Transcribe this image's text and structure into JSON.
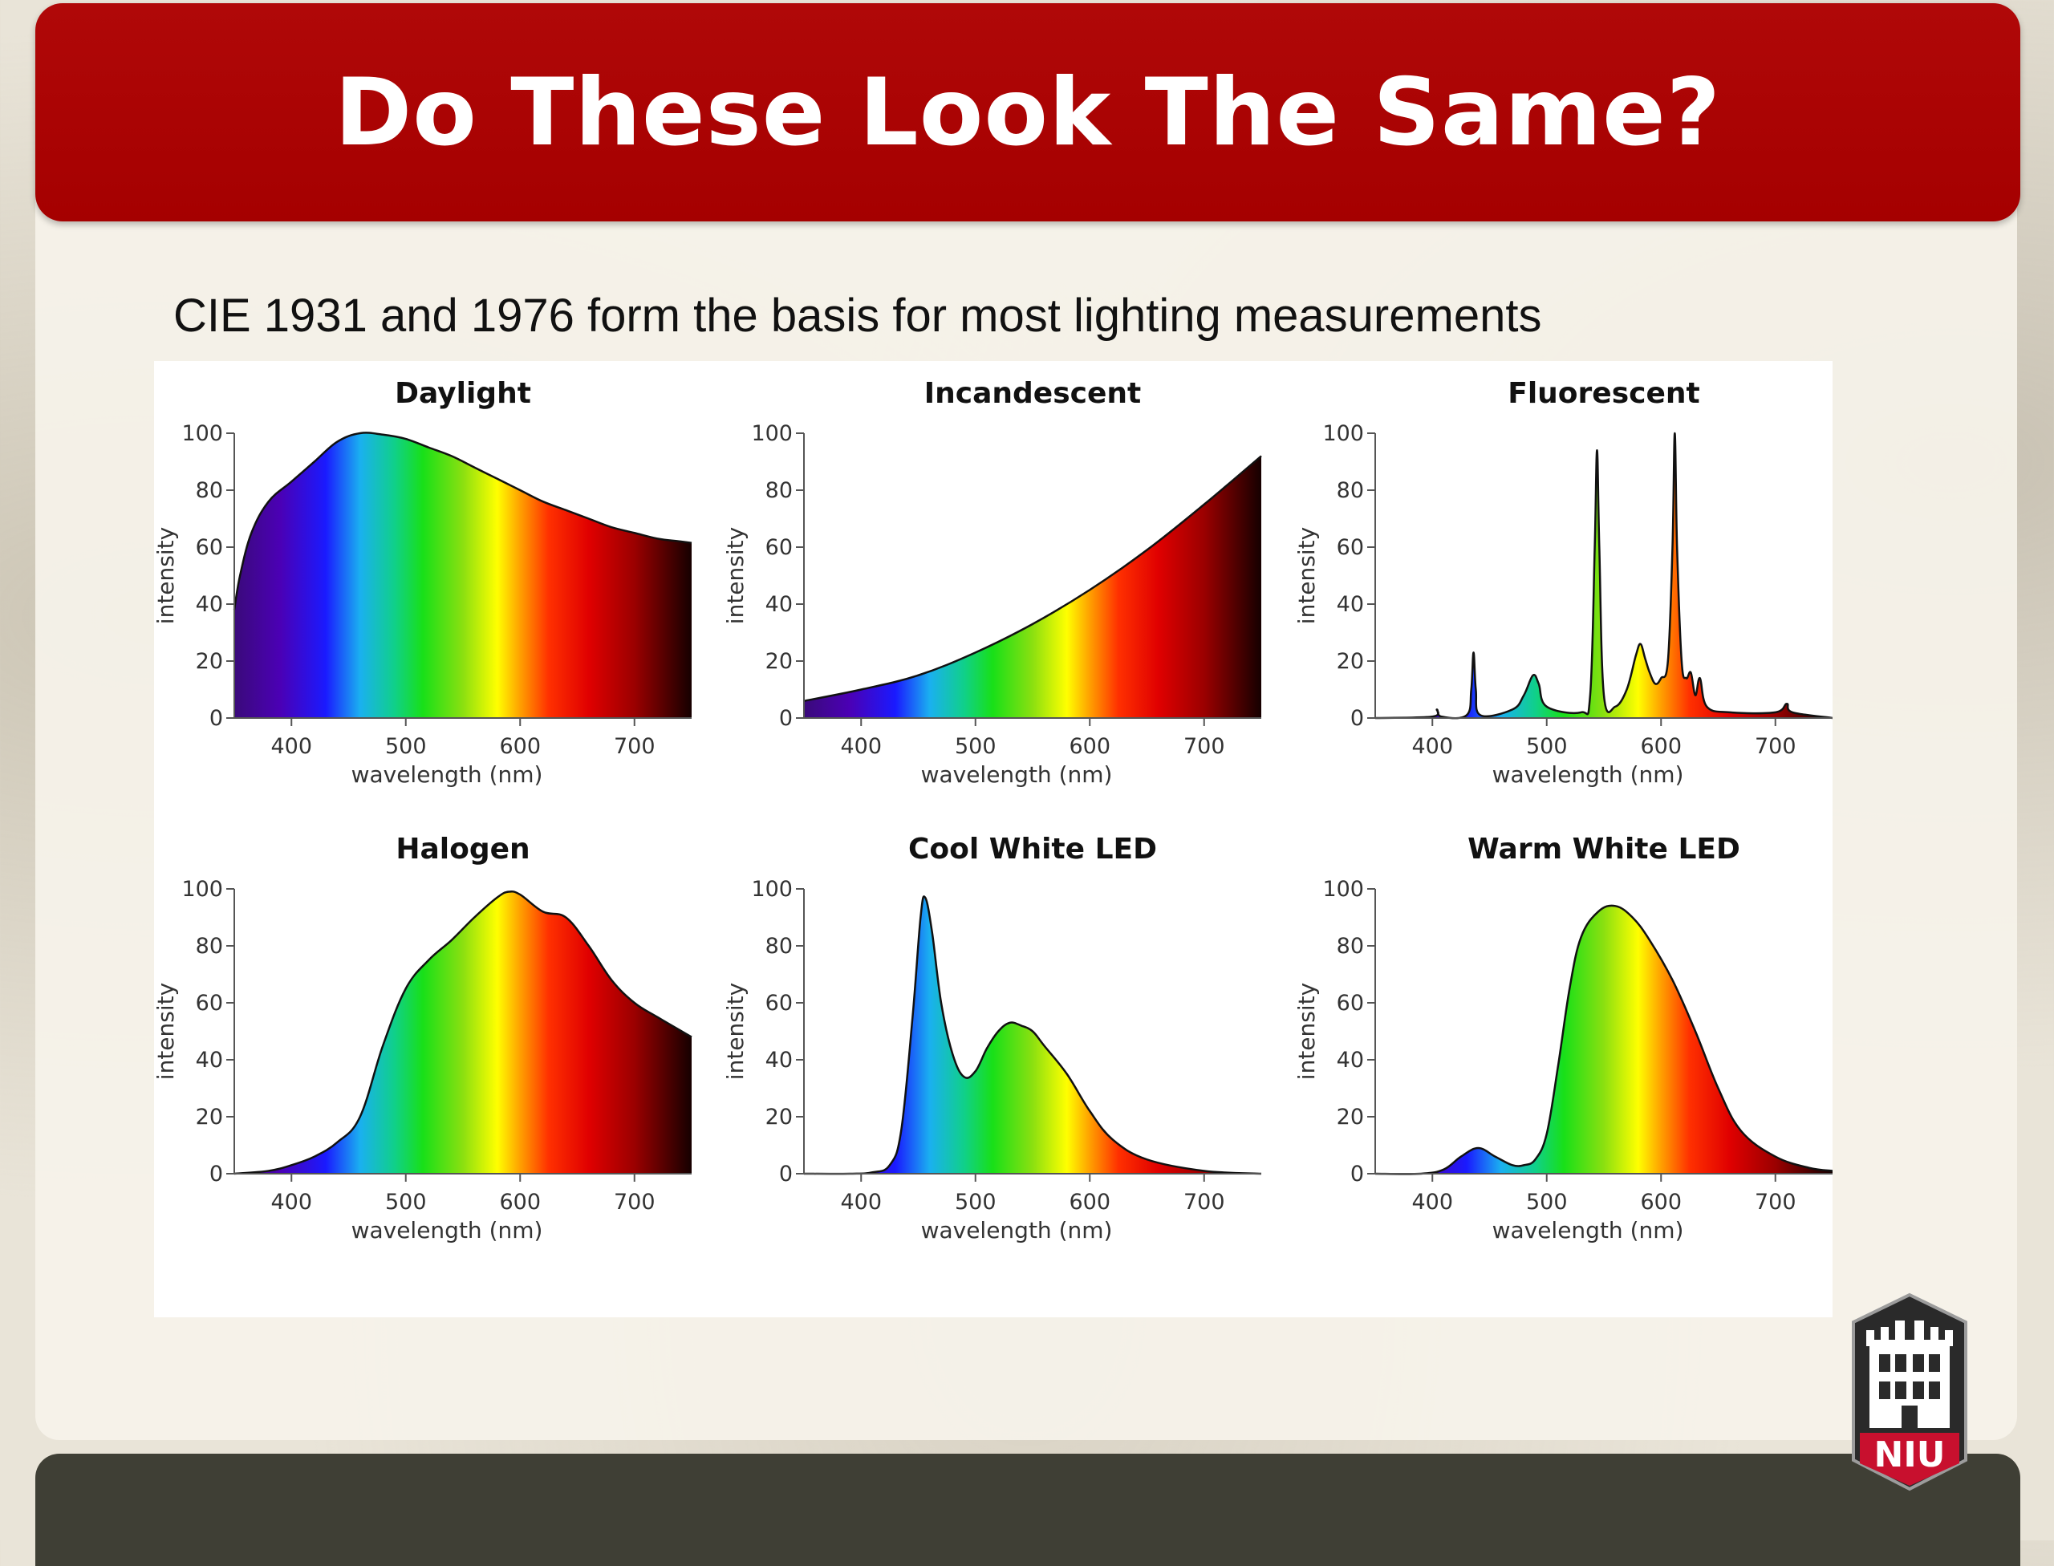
{
  "slide": {
    "title": "Do These Look The Same?",
    "subtitle": "CIE 1931 and 1976 form the basis for most lighting measurements",
    "logo_text": "NIU"
  },
  "colors": {
    "title_bar": "#a50000",
    "title_text": "#ffffff",
    "bottom_bar": "#3f3f35",
    "chart_background": "#ffffff"
  },
  "spectrum_colors": [
    {
      "wavelength": 350,
      "color": "#3a0a7a"
    },
    {
      "wavelength": 390,
      "color": "#4b00b5"
    },
    {
      "wavelength": 430,
      "color": "#1a1aff"
    },
    {
      "wavelength": 460,
      "color": "#1ab0f0"
    },
    {
      "wavelength": 490,
      "color": "#10d08a"
    },
    {
      "wavelength": 515,
      "color": "#18e018"
    },
    {
      "wavelength": 550,
      "color": "#8be010"
    },
    {
      "wavelength": 580,
      "color": "#ffff00"
    },
    {
      "wavelength": 600,
      "color": "#ffa000"
    },
    {
      "wavelength": 625,
      "color": "#ff3000"
    },
    {
      "wavelength": 660,
      "color": "#e00000"
    },
    {
      "wavelength": 700,
      "color": "#9b0000"
    },
    {
      "wavelength": 750,
      "color": "#150000"
    }
  ],
  "chart_data": [
    {
      "type": "area",
      "title": "Daylight",
      "xlabel": "wavelength (nm)",
      "ylabel": "intensity",
      "xlim": [
        350,
        750
      ],
      "ylim": [
        0,
        100
      ],
      "xticks": [
        400,
        500,
        600,
        700
      ],
      "yticks": [
        0,
        20,
        40,
        60,
        80,
        100
      ],
      "x": [
        350,
        355,
        365,
        380,
        400,
        420,
        440,
        460,
        480,
        500,
        520,
        540,
        560,
        580,
        600,
        620,
        640,
        660,
        680,
        700,
        720,
        740,
        750
      ],
      "y": [
        38,
        50,
        65,
        76,
        83,
        90,
        97,
        100,
        99.5,
        98,
        95,
        92,
        88,
        84,
        80,
        76,
        73,
        70,
        67,
        65,
        63,
        62,
        61.5
      ]
    },
    {
      "type": "area",
      "title": "Incandescent",
      "xlabel": "wavelength (nm)",
      "ylabel": "intensity",
      "xlim": [
        350,
        750
      ],
      "ylim": [
        0,
        100
      ],
      "xticks": [
        400,
        500,
        600,
        700
      ],
      "yticks": [
        0,
        20,
        40,
        60,
        80,
        100
      ],
      "x": [
        350,
        400,
        450,
        500,
        550,
        600,
        650,
        700,
        750
      ],
      "y": [
        6,
        10,
        15,
        23,
        33,
        45,
        59,
        75,
        92
      ]
    },
    {
      "type": "area",
      "title": "Fluorescent",
      "xlabel": "wavelength (nm)",
      "ylabel": "intensity",
      "xlim": [
        350,
        750
      ],
      "ylim": [
        0,
        100
      ],
      "xticks": [
        400,
        500,
        600,
        700
      ],
      "yticks": [
        0,
        20,
        40,
        60,
        80,
        100
      ],
      "x": [
        350,
        400,
        404,
        408,
        430,
        434,
        436,
        438,
        442,
        470,
        480,
        488,
        493,
        500,
        530,
        538,
        542,
        544,
        546,
        550,
        560,
        570,
        578,
        582,
        586,
        590,
        595,
        600,
        606,
        610,
        612,
        614,
        618,
        622,
        626,
        630,
        634,
        640,
        660,
        700,
        710,
        715,
        750
      ],
      "y": [
        0,
        0.5,
        3,
        0.5,
        1,
        10,
        23,
        10,
        1,
        3,
        8,
        15,
        12,
        4,
        2,
        8,
        60,
        94,
        60,
        8,
        4,
        10,
        22,
        26,
        21,
        16,
        12,
        14,
        20,
        60,
        100,
        60,
        20,
        14,
        16,
        8,
        14,
        4,
        2,
        2,
        5,
        2,
        0
      ]
    },
    {
      "type": "area",
      "title": "Halogen",
      "xlabel": "wavelength (nm)",
      "ylabel": "intensity",
      "xlim": [
        350,
        750
      ],
      "ylim": [
        0,
        100
      ],
      "xticks": [
        400,
        500,
        600,
        700
      ],
      "yticks": [
        0,
        20,
        40,
        60,
        80,
        100
      ],
      "x": [
        350,
        380,
        400,
        420,
        440,
        460,
        480,
        500,
        520,
        540,
        560,
        580,
        590,
        600,
        620,
        640,
        660,
        680,
        700,
        720,
        750
      ],
      "y": [
        0,
        1,
        3,
        6,
        11,
        20,
        45,
        65,
        75,
        82,
        90,
        97,
        99,
        98,
        92,
        90,
        80,
        68,
        60,
        55,
        48
      ]
    },
    {
      "type": "area",
      "title": "Cool White LED",
      "xlabel": "wavelength (nm)",
      "ylabel": "intensity",
      "xlim": [
        350,
        750
      ],
      "ylim": [
        0,
        100
      ],
      "xticks": [
        400,
        500,
        600,
        700
      ],
      "yticks": [
        0,
        20,
        40,
        60,
        80,
        100
      ],
      "x": [
        350,
        390,
        410,
        425,
        435,
        445,
        452,
        456,
        462,
        470,
        480,
        490,
        500,
        510,
        520,
        530,
        540,
        550,
        560,
        580,
        600,
        620,
        650,
        700,
        750
      ],
      "y": [
        0,
        0,
        0.5,
        3,
        15,
        55,
        90,
        97,
        85,
        60,
        42,
        34,
        36,
        44,
        50,
        53,
        52,
        50,
        45,
        35,
        22,
        12,
        5,
        1,
        0
      ]
    },
    {
      "type": "area",
      "title": "Warm White LED",
      "xlabel": "wavelength (nm)",
      "ylabel": "intensity",
      "xlim": [
        350,
        750
      ],
      "ylim": [
        0,
        100
      ],
      "xticks": [
        400,
        500,
        600,
        700
      ],
      "yticks": [
        0,
        20,
        40,
        60,
        80,
        100
      ],
      "x": [
        350,
        390,
        410,
        425,
        440,
        455,
        470,
        480,
        490,
        500,
        510,
        520,
        530,
        545,
        560,
        575,
        590,
        610,
        630,
        650,
        670,
        700,
        730,
        750
      ],
      "y": [
        0,
        0,
        1.5,
        6,
        9,
        6,
        3,
        3,
        5,
        14,
        38,
        65,
        83,
        92,
        94,
        90,
        82,
        68,
        50,
        30,
        15,
        6,
        2,
        1
      ]
    }
  ]
}
